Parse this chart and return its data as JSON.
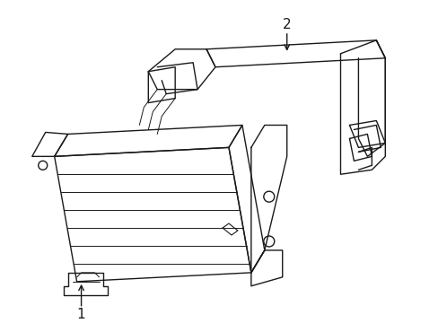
{
  "background_color": "#ffffff",
  "line_color": "#1a1a1a",
  "line_width": 1.0,
  "label_1": "1",
  "label_2": "2",
  "label_fontsize": 11,
  "fig_width": 4.89,
  "fig_height": 3.6,
  "dpi": 100
}
